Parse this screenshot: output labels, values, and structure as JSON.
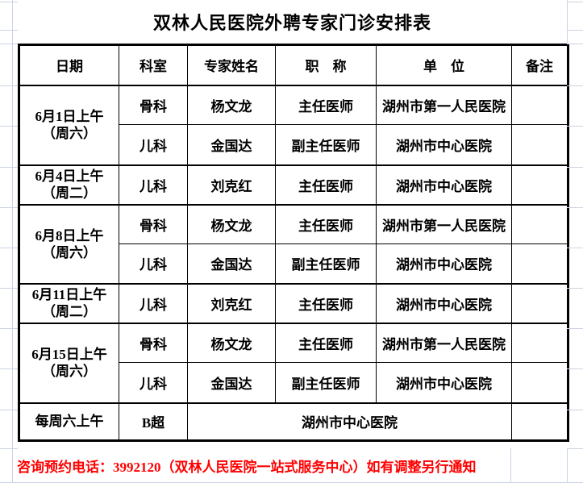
{
  "title": "双林人民医院外聘专家门诊安排表",
  "table": {
    "headers": {
      "date": "日期",
      "department": "科室",
      "expert_name": "专家姓名",
      "job_title": "职　称",
      "unit": "单　位",
      "note": "备注"
    },
    "groups": [
      {
        "date_line1": "6月1日上午",
        "date_line2": "（周六）",
        "rows": [
          {
            "department": "骨科",
            "expert_name": "杨文龙",
            "job_title": "主任医师",
            "unit": "湖州市第一人民医院",
            "note": ""
          },
          {
            "department": "儿科",
            "expert_name": "金国达",
            "job_title": "副主任医师",
            "unit": "湖州市中心医院",
            "note": ""
          }
        ]
      },
      {
        "date_line1": "6月4日上午",
        "date_line2": "（周二）",
        "rows": [
          {
            "department": "儿科",
            "expert_name": "刘克红",
            "job_title": "主任医师",
            "unit": "湖州市中心医院",
            "note": ""
          }
        ]
      },
      {
        "date_line1": "6月8日上午",
        "date_line2": "（周六）",
        "rows": [
          {
            "department": "骨科",
            "expert_name": "杨文龙",
            "job_title": "主任医师",
            "unit": "湖州市第一人民医院",
            "note": ""
          },
          {
            "department": "儿科",
            "expert_name": "金国达",
            "job_title": "副主任医师",
            "unit": "湖州市中心医院",
            "note": ""
          }
        ]
      },
      {
        "date_line1": "6月11日上午",
        "date_line2": "（周二）",
        "rows": [
          {
            "department": "儿科",
            "expert_name": "刘克红",
            "job_title": "主任医师",
            "unit": "湖州市中心医院",
            "note": ""
          }
        ]
      },
      {
        "date_line1": "6月15日上午",
        "date_line2": "（周六）",
        "rows": [
          {
            "department": "骨科",
            "expert_name": "杨文龙",
            "job_title": "主任医师",
            "unit": "湖州市第一人民医院",
            "note": ""
          },
          {
            "department": "儿科",
            "expert_name": "金国达",
            "job_title": "副主任医师",
            "unit": "湖州市中心医院",
            "note": ""
          }
        ]
      }
    ],
    "bottom_row": {
      "date": "每周六上午",
      "department": "B超",
      "unit": "湖州市中心医院",
      "note": ""
    }
  },
  "footer": {
    "note": "咨询预约电话：3992120（双林人民医院一站式服务中心）如有调整另行通知"
  },
  "colors": {
    "footer_red": "#ff0000",
    "table_border": "#000000",
    "grid_line": "#ccd3e4",
    "background": "#ffffff"
  }
}
